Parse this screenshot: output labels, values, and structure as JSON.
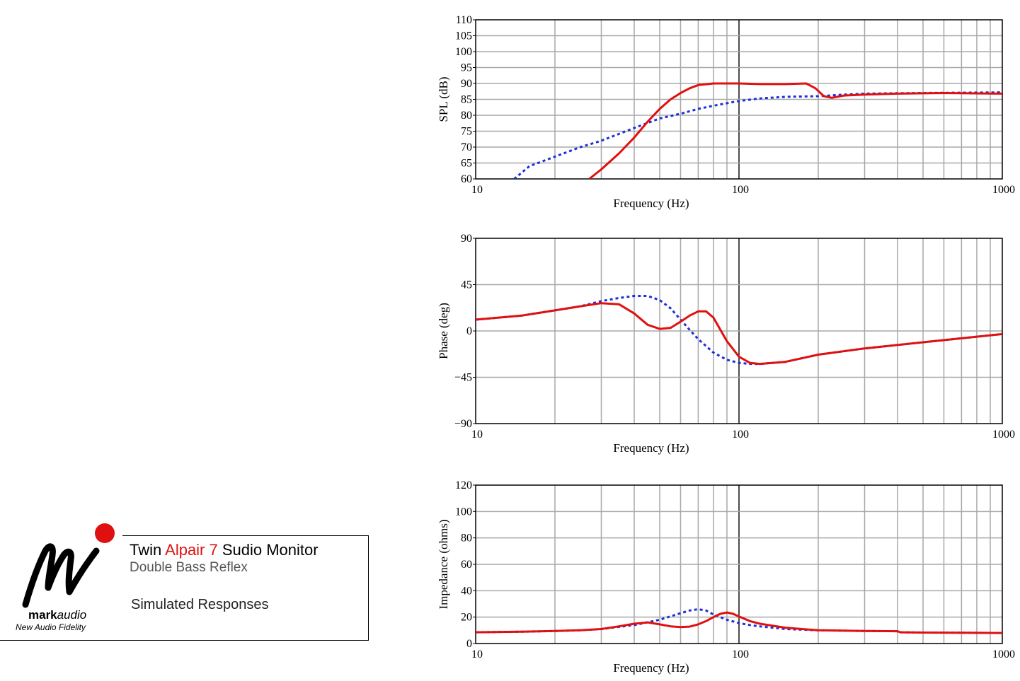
{
  "branding": {
    "title_pre": "Twin ",
    "title_accent": "Alpair 7",
    "title_post": " Sudio Monitor",
    "subtitle": "Double Bass Reflex",
    "simulated": "Simulated Responses",
    "logo_bold": "mark",
    "logo_italic": "audio",
    "tagline": "New Audio Fidelity",
    "accent_color": "#e01010"
  },
  "colors": {
    "series_red": "#e01010",
    "series_blue": "#1f2fd8",
    "grid": "#a8a8a8"
  },
  "chart_data": [
    {
      "type": "line",
      "xlabel": "Frequency (Hz)",
      "ylabel": "SPL (dB)",
      "xscale": "log",
      "xlim": [
        10,
        1000
      ],
      "ylim": [
        60,
        110
      ],
      "xticks": [
        10,
        100,
        1000
      ],
      "yticks": [
        60,
        65,
        70,
        75,
        80,
        85,
        90,
        95,
        100,
        105,
        110
      ],
      "grid": true,
      "series": [
        {
          "style": "solid",
          "color": "#e01010",
          "x": [
            27,
            30,
            35,
            40,
            45,
            50,
            55,
            60,
            65,
            70,
            80,
            100,
            120,
            150,
            180,
            195,
            210,
            225,
            250,
            300,
            400,
            600,
            1000
          ],
          "y": [
            60,
            63,
            68,
            73,
            78,
            82,
            85,
            87,
            88.5,
            89.5,
            90,
            90,
            89.8,
            89.8,
            90,
            88.5,
            86,
            85.5,
            86.2,
            86.5,
            86.8,
            87,
            86.8
          ]
        },
        {
          "style": "dotted",
          "color": "#1f2fd8",
          "x": [
            14,
            16,
            20,
            25,
            30,
            40,
            50,
            60,
            70,
            80,
            100,
            120,
            150,
            200,
            250,
            300,
            500,
            1000
          ],
          "y": [
            60,
            64,
            67,
            70,
            72,
            76,
            79,
            80.5,
            82,
            83,
            84.5,
            85.3,
            85.8,
            86,
            86.5,
            86.8,
            87,
            87.2
          ]
        }
      ]
    },
    {
      "type": "line",
      "xlabel": "Frequency (Hz)",
      "ylabel": "Phase (deg)",
      "xscale": "log",
      "xlim": [
        10,
        1000
      ],
      "ylim": [
        -90,
        90
      ],
      "xticks": [
        10,
        100,
        1000
      ],
      "yticks": [
        -90,
        -45,
        0,
        45,
        90
      ],
      "grid": true,
      "series": [
        {
          "style": "solid",
          "color": "#e01010",
          "x": [
            10,
            15,
            20,
            25,
            30,
            35,
            40,
            45,
            50,
            55,
            60,
            65,
            70,
            75,
            80,
            90,
            100,
            110,
            120,
            150,
            200,
            300,
            500,
            1000
          ],
          "y": [
            11,
            15,
            20,
            24,
            27,
            26,
            17,
            6,
            2,
            3,
            9,
            15,
            19,
            19,
            13,
            -10,
            -25,
            -31,
            -32,
            -30,
            -23,
            -17,
            -11,
            -3
          ]
        },
        {
          "style": "dotted",
          "color": "#1f2fd8",
          "x": [
            10,
            15,
            20,
            25,
            30,
            35,
            40,
            45,
            50,
            55,
            60,
            65,
            70,
            80,
            90,
            100,
            110,
            120,
            150,
            200,
            300,
            500,
            1000
          ],
          "y": [
            11,
            15,
            20,
            24,
            29,
            32,
            34,
            34,
            30,
            22,
            11,
            1,
            -8,
            -21,
            -28,
            -31,
            -32,
            -32,
            -30,
            -23,
            -17,
            -11,
            -3
          ]
        }
      ]
    },
    {
      "type": "line",
      "xlabel": "Frequency (Hz)",
      "ylabel": "Impedance (ohms)",
      "xscale": "log",
      "xlim": [
        10,
        1000
      ],
      "ylim": [
        0,
        120
      ],
      "xticks": [
        10,
        100,
        1000
      ],
      "yticks": [
        0,
        20,
        40,
        60,
        80,
        100,
        120
      ],
      "grid": true,
      "series": [
        {
          "style": "solid",
          "color": "#e01010",
          "x": [
            10,
            15,
            20,
            25,
            30,
            35,
            40,
            45,
            50,
            55,
            60,
            65,
            70,
            75,
            80,
            85,
            90,
            95,
            100,
            110,
            120,
            150,
            200,
            300,
            400,
            410,
            500,
            700,
            1000
          ],
          "y": [
            8.5,
            9,
            9.5,
            10,
            11,
            13,
            15,
            16,
            14.5,
            13,
            12.5,
            12.8,
            14.5,
            17,
            20,
            22.5,
            23.5,
            22.5,
            20.5,
            17,
            15,
            12,
            10,
            9.5,
            9.3,
            8.5,
            8.3,
            8.2,
            8
          ]
        },
        {
          "style": "dotted",
          "color": "#1f2fd8",
          "x": [
            10,
            15,
            20,
            25,
            30,
            40,
            50,
            60,
            65,
            70,
            75,
            80,
            90,
            100,
            110,
            120,
            150,
            200,
            300,
            400,
            410,
            500,
            700,
            1000
          ],
          "y": [
            8.5,
            9,
            9.5,
            10,
            11,
            14,
            18,
            23,
            25,
            26,
            25,
            22,
            18,
            15.5,
            14,
            13,
            11,
            10,
            9.5,
            9.3,
            8.5,
            8.3,
            8.2,
            8
          ]
        }
      ]
    }
  ]
}
